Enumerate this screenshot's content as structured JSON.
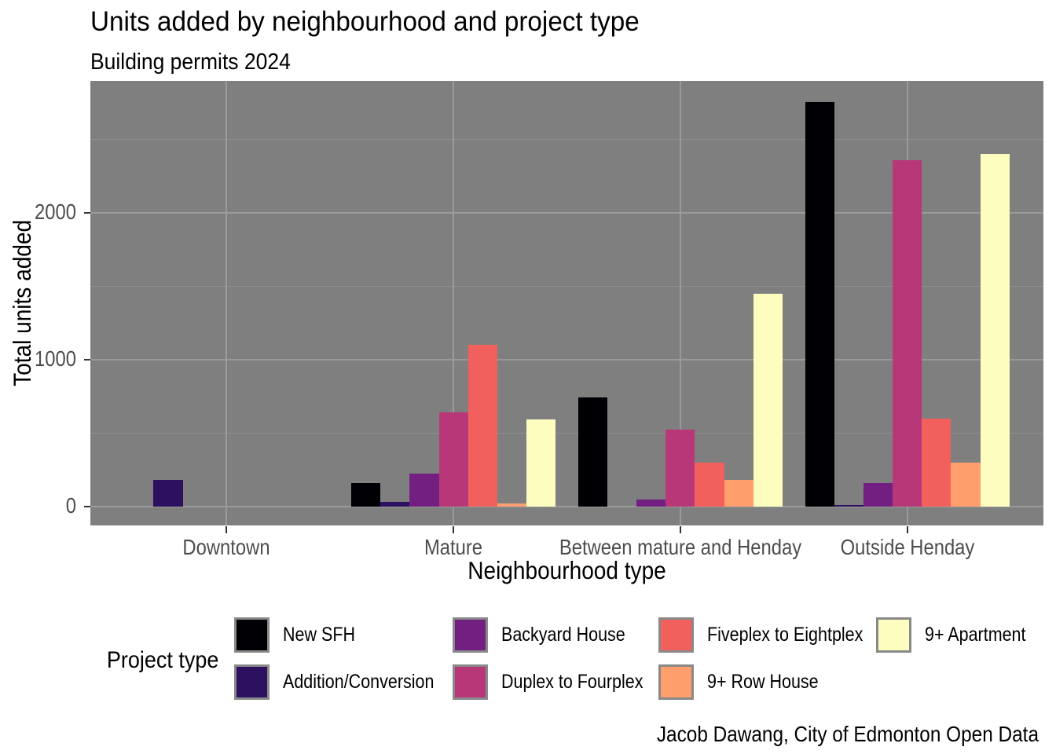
{
  "title": "Units added by neighbourhood and project type",
  "subtitle": "Building permits 2024",
  "caption": "Jacob Dawang, City of Edmonton Open Data",
  "chart_data": {
    "type": "bar",
    "title": "Units added by neighbourhood and project type",
    "subtitle": "Building permits 2024",
    "xlabel": "Neighbourhood type",
    "ylabel": "Total units added",
    "categories": [
      "Downtown",
      "Mature",
      "Between mature and Henday",
      "Outside Henday"
    ],
    "series": [
      {
        "name": "New SFH",
        "color": "#000004",
        "values": [
          0,
          160,
          745,
          2750
        ]
      },
      {
        "name": "Addition/Conversion",
        "color": "#2D1160",
        "values": [
          180,
          30,
          0,
          10
        ]
      },
      {
        "name": "Backyard House",
        "color": "#721F81",
        "values": [
          0,
          225,
          50,
          162
        ]
      },
      {
        "name": "Duplex to Fourplex",
        "color": "#B73779",
        "values": [
          0,
          640,
          525,
          2355
        ]
      },
      {
        "name": "Fiveplex to Eightplex",
        "color": "#F1605D",
        "values": [
          0,
          1100,
          300,
          600
        ]
      },
      {
        "name": "9+ Row House",
        "color": "#FE9F6D",
        "values": [
          0,
          20,
          180,
          300
        ]
      },
      {
        "name": "9+ Apartment",
        "color": "#FCFDBF",
        "values": [
          0,
          595,
          1450,
          2400
        ]
      }
    ],
    "y_ticks": [
      0,
      1000,
      2000
    ],
    "y_minor_ticks": [
      500,
      1500,
      2500
    ],
    "ylim": [
      -128,
      2896
    ],
    "legend_title": "Project type",
    "legend_position": "bottom",
    "panel_background": "#7f7f7f",
    "grid": true
  }
}
